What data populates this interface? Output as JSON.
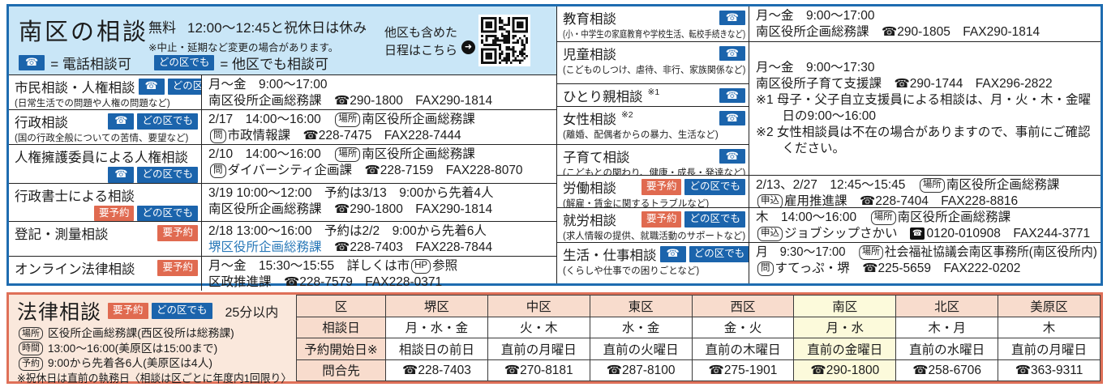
{
  "colors": {
    "top_border": "#1e6cb0",
    "header_bg": "#c9e6f7",
    "badge_blue": "#1b64ac",
    "badge_salmon": "#e06a50",
    "bottom_border": "#df7058",
    "panel_peach": "#fae8dc",
    "cell_peach": "#f8dccd",
    "cell_yellow": "#fcfadb",
    "link_blue": "#2878b8"
  },
  "badges": {
    "phone": "☎",
    "reserve": "要予約",
    "anyward": "どの区でも"
  },
  "top": {
    "header": {
      "title": "南区の相談",
      "free_label": "無料",
      "hours_note": "12:00～12:45と祝休日は休み",
      "change_note": "※中止・延期など変更の場合があります。",
      "phone_legend": "= 電話相談可",
      "anyward_legend": "= 他区でも相談可",
      "qr_line1": "他区も含めた",
      "qr_line2": "日程はこちら",
      "qr_semantic": "qr-code-schedule-link"
    },
    "left_rows": [
      {
        "title": "市民相談・人権相談",
        "note": "(日常生活での問題や人権の問題など)",
        "badges": [
          "phone",
          "anyward"
        ],
        "badges_pos": "inline",
        "detail": [
          [
            "月～金　9:00～17:00"
          ],
          [
            "南区役所企画総務課　☎290-1800　FAX290-1814"
          ]
        ]
      },
      {
        "title": "行政相談",
        "note": "(国の行政全般についての苦情、要望など)",
        "badges": [
          "phone",
          "anyward"
        ],
        "badges_pos": "inline",
        "detail": [
          [
            {
              "t": "2/17　14:00～16:00　"
            },
            {
              "b": "場所"
            },
            {
              "t": "南区役所企画総務課"
            }
          ],
          [
            {
              "b": "問"
            },
            {
              "t": "市政情報課　☎228-7475　FAX228-7444"
            }
          ]
        ]
      },
      {
        "title": "人権擁護委員による人権相談",
        "badges": [
          "phone",
          "anyward"
        ],
        "badges_pos": "below",
        "detail": [
          [
            {
              "t": "2/10　14:00～16:00　"
            },
            {
              "b": "場所"
            },
            {
              "t": "南区役所企画総務課"
            }
          ],
          [
            {
              "b": "問"
            },
            {
              "t": "ダイバーシティ企画課　☎228-7159　FAX228-8070"
            }
          ]
        ]
      },
      {
        "title": "行政書士による相談",
        "badges": [
          "reserve",
          "anyward"
        ],
        "badges_pos": "below",
        "detail": [
          [
            "3/19 10:00～12:00　予約は3/13　9:00から先着4人"
          ],
          [
            "南区役所企画総務課　☎290-1800　FAX290-1814"
          ]
        ]
      },
      {
        "title": "登記・測量相談",
        "badges": [
          "reserve"
        ],
        "badges_pos": "inline",
        "detail": [
          [
            "2/18 13:00～16:00　予約は2/2　9:00から先着6人"
          ],
          [
            {
              "link": "堺区役所企画総務課"
            },
            {
              "t": "　☎228-7403　FAX228-7844"
            }
          ]
        ]
      },
      {
        "title": "オンライン法律相談",
        "badges": [
          "reserve"
        ],
        "badges_pos": "inline",
        "detail": [
          [
            {
              "t": "月～金　15:30～15:55　詳しくは市"
            },
            {
              "b": "HP"
            },
            {
              "t": "参照"
            }
          ],
          [
            "区政推進課　☎228-7579　FAX228-0371"
          ]
        ]
      }
    ],
    "mid_rows": [
      {
        "title": "教育相談",
        "note": "(小・中学生の家庭教育や学校生活、転校手続きなど)",
        "badges": [
          "phone"
        ]
      },
      {
        "title": "児童相談",
        "note": "(こどものしつけ、虐待、非行、家族関係など)",
        "badges": [
          "phone"
        ]
      },
      {
        "title": "ひとり親相談",
        "sup": "※1",
        "badges": [
          "phone"
        ]
      },
      {
        "title": "女性相談",
        "sup": "※2",
        "note": "(離婚、配偶者からの暴力、生活など)",
        "badges": [
          "phone"
        ]
      },
      {
        "title": "子育て相談",
        "note": "(こどもとの関わり、健康・成長・発達など)",
        "badges": [
          "phone"
        ]
      },
      {
        "title": "労働相談",
        "note": "(解雇・賃金に関するトラブルなど)",
        "badges": [
          "reserve",
          "anyward"
        ]
      },
      {
        "title": "就労相談",
        "note": "(求人情報の提供、就職活動のサポートなど)",
        "badges": [
          "reserve",
          "anyward"
        ]
      },
      {
        "title": "生活・仕事相談",
        "note": "(くらしや仕事での困りごとなど)",
        "badges": [
          "phone",
          "anyward"
        ]
      }
    ],
    "right_details": [
      {
        "row": 1,
        "span": 1,
        "lines": [
          [
            "月～金　9:00～17:00"
          ],
          [
            "南区役所企画総務課　☎290-1805　FAX290-1814"
          ]
        ]
      },
      {
        "row": 2,
        "span": 4,
        "pad_top": true,
        "lines": [
          [
            "月～金　9:00～17:30"
          ],
          [
            "南区役所子育て支援課　☎290-1744　FAX296-2822"
          ],
          [
            "※1 母子・父子自立支援員による相談は、月・火・木・金曜日の9:00～16:00"
          ],
          [
            "※2 女性相談員は不在の場合がありますので、事前にご確認ください。"
          ]
        ]
      },
      {
        "row": 6,
        "span": 1,
        "lines": [
          [
            {
              "t": "2/13、2/27　12:45～15:45　"
            },
            {
              "b": "場所"
            },
            {
              "t": "南区役所企画総務課"
            }
          ],
          [
            {
              "b": "申込"
            },
            {
              "t": "雇用推進課　☎228-7404　FAX228-8816"
            }
          ]
        ]
      },
      {
        "row": 7,
        "span": 1,
        "lines": [
          [
            {
              "t": "木　14:00～16:00　"
            },
            {
              "b": "場所"
            },
            {
              "t": "南区役所企画総務課"
            }
          ],
          [
            {
              "b": "申込"
            },
            {
              "t": "ジョブシップさかい　"
            },
            {
              "fd": "☎"
            },
            {
              "t": "0120-010908　FAX244-3771"
            }
          ]
        ]
      },
      {
        "row": 8,
        "span": 1,
        "lines": [
          [
            {
              "t": "月　9:30～17:00　"
            },
            {
              "b": "場所"
            },
            {
              "t": "社会福祉協議会南区事務所(南区役所内)"
            }
          ],
          [
            {
              "b": "問"
            },
            {
              "t": "すてっぷ・堺　☎225-5659　FAX222-0202"
            }
          ]
        ]
      }
    ]
  },
  "bottom": {
    "title": "法律相談",
    "badges": [
      "reserve",
      "anyward"
    ],
    "duration": "25分以内",
    "info_lines": [
      [
        {
          "b": "場所"
        },
        {
          "t": " 区役所企画総務課(西区役所は総務課)"
        }
      ],
      [
        {
          "b": "時間"
        },
        {
          "t": " 13:00～16:00(美原区は15:00まで)"
        }
      ],
      [
        {
          "b": "予約"
        },
        {
          "t": " 9:00から先着各6人(美原区は4人)"
        }
      ],
      [
        {
          "t": "※祝休日は直前の執務日〈相談は区ごとに年度内1回限り〉"
        }
      ]
    ],
    "table": {
      "header": [
        "区",
        "堺区",
        "中区",
        "東区",
        "西区",
        "南区",
        "北区",
        "美原区"
      ],
      "highlight_ward": "南区",
      "highlight_col": 5,
      "rows": [
        {
          "label": "相談日",
          "values": [
            "月・水・金",
            "火・木",
            "水・金",
            "金・火",
            "月・水",
            "木・月",
            "木"
          ]
        },
        {
          "label": "予約開始日※",
          "values": [
            "相談日の前日",
            "直前の月曜日",
            "直前の火曜日",
            "直前の木曜日",
            "直前の金曜日",
            "直前の水曜日",
            "直前の月曜日"
          ]
        },
        {
          "label": "問合先",
          "values": [
            "☎228-7403",
            "☎270-8181",
            "☎287-8100",
            "☎275-1901",
            "☎290-1800",
            "☎258-6706",
            "☎363-9311"
          ]
        }
      ]
    }
  }
}
